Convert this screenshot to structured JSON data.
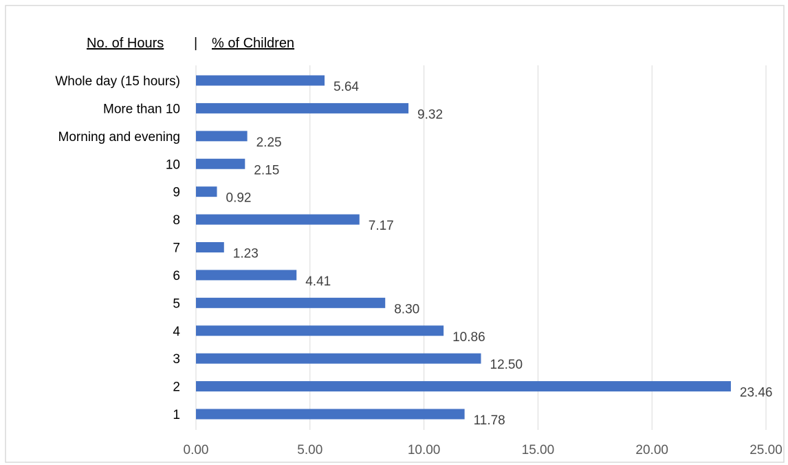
{
  "header": {
    "left": "No. of Hours",
    "separator": "|",
    "right": "% of Children"
  },
  "chart_data": {
    "type": "bar",
    "orientation": "horizontal",
    "categories": [
      "1",
      "2",
      "3",
      "4",
      "5",
      "6",
      "7",
      "8",
      "9",
      "10",
      "Morning and evening",
      "More than 10",
      "Whole day (15 hours)"
    ],
    "values": [
      11.78,
      23.46,
      12.5,
      10.86,
      8.3,
      4.41,
      1.23,
      7.17,
      0.92,
      2.15,
      2.25,
      9.32,
      5.64
    ],
    "value_labels": [
      "11.78",
      "23.46",
      "12.50",
      "10.86",
      "8.30",
      "4.41",
      "1.23",
      "7.17",
      "0.92",
      "2.15",
      "2.25",
      "9.32",
      "5.64"
    ],
    "x_ticks": [
      "0.00",
      "5.00",
      "10.00",
      "15.00",
      "20.00",
      "25.00"
    ],
    "xlim": [
      0,
      25
    ],
    "grid": true,
    "bar_color": "#4472c4",
    "title": "",
    "xlabel": "",
    "ylabel": ""
  }
}
